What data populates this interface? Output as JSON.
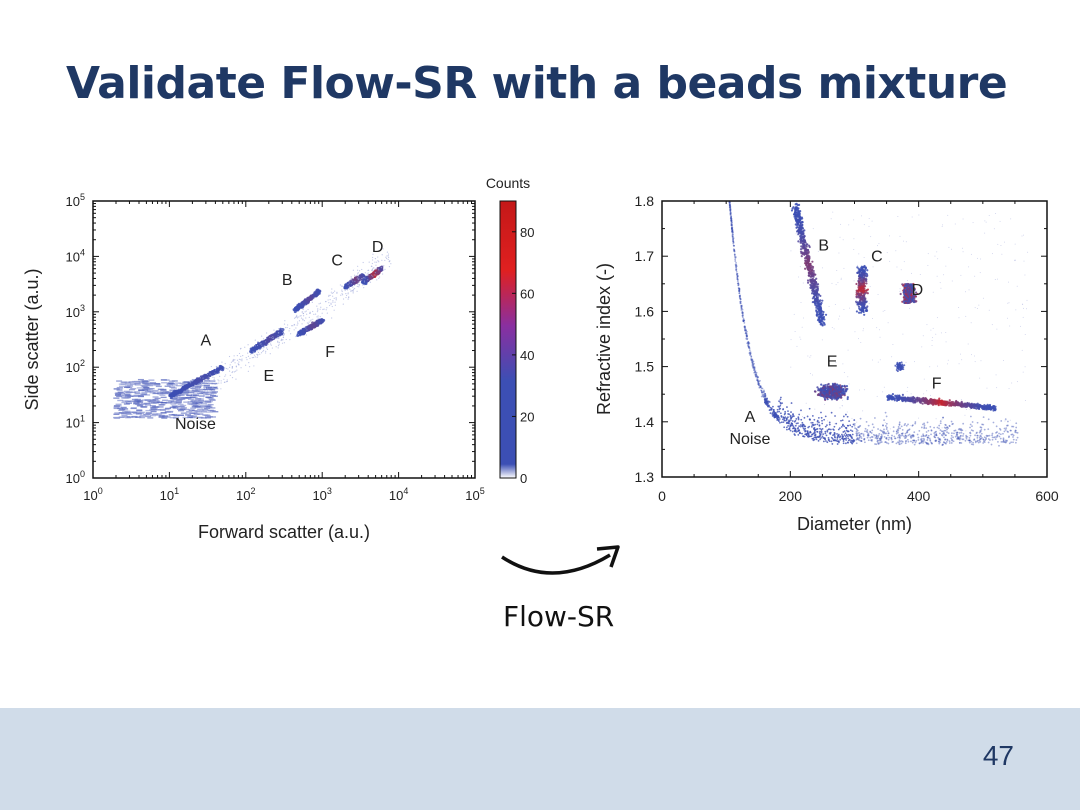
{
  "slide": {
    "title": "Validate Flow-SR with a beads mixture",
    "page_number": "47",
    "transform_label": "Flow-SR"
  },
  "colors": {
    "title": "#1f3864",
    "footer": "#d0dce9",
    "points_low": "#3c4fb4",
    "points_high": "#d62020"
  },
  "chart_data": [
    {
      "type": "heatmap",
      "xlabel": "Forward scatter (a.u.)",
      "ylabel": "Side scatter (a.u.)",
      "x_scale": "log",
      "y_scale": "log",
      "xlim": [
        1,
        100000
      ],
      "ylim": [
        1,
        100000
      ],
      "x_ticks": [
        {
          "base": "10",
          "exp": "0"
        },
        {
          "base": "10",
          "exp": "1"
        },
        {
          "base": "10",
          "exp": "2"
        },
        {
          "base": "10",
          "exp": "3"
        },
        {
          "base": "10",
          "exp": "4"
        },
        {
          "base": "10",
          "exp": "5"
        }
      ],
      "y_ticks": [
        {
          "base": "10",
          "exp": "0"
        },
        {
          "base": "10",
          "exp": "1"
        },
        {
          "base": "10",
          "exp": "2"
        },
        {
          "base": "10",
          "exp": "3"
        },
        {
          "base": "10",
          "exp": "4"
        },
        {
          "base": "10",
          "exp": "5"
        }
      ],
      "colorbar": {
        "label": "Counts",
        "range": [
          0,
          90
        ],
        "ticks": [
          "0",
          "20",
          "40",
          "60",
          "80"
        ]
      },
      "annotations": [
        {
          "text": "A",
          "x": 30,
          "y": 150
        },
        {
          "text": "B",
          "x": 500,
          "y": 2200
        },
        {
          "text": "C",
          "x": 2000,
          "y": 4500
        },
        {
          "text": "D",
          "x": 5000,
          "y": 8000
        },
        {
          "text": "E",
          "x": 200,
          "y": 100
        },
        {
          "text": "F",
          "x": 1000,
          "y": 250
        },
        {
          "text": "Noise",
          "x": 12,
          "y": 9
        }
      ],
      "clusters": [
        {
          "name": "Noise",
          "x_range": [
            2,
            40
          ],
          "y_range": [
            12,
            60
          ],
          "peak_counts": 20
        },
        {
          "name": "A",
          "x_range": [
            10,
            50
          ],
          "y_range": [
            30,
            100
          ],
          "peak_counts": 25
        },
        {
          "name": "E",
          "x_range": [
            120,
            300
          ],
          "y_range": [
            200,
            450
          ],
          "peak_counts": 35
        },
        {
          "name": "F",
          "x_range": [
            500,
            1000
          ],
          "y_range": [
            400,
            700
          ],
          "peak_counts": 45
        },
        {
          "name": "B",
          "x_range": [
            450,
            900
          ],
          "y_range": [
            1100,
            2300
          ],
          "peak_counts": 40
        },
        {
          "name": "C",
          "x_range": [
            2000,
            3500
          ],
          "y_range": [
            2800,
            4500
          ],
          "peak_counts": 55
        },
        {
          "name": "D",
          "x_range": [
            3500,
            6000
          ],
          "y_range": [
            3500,
            6000
          ],
          "peak_counts": 85
        }
      ]
    },
    {
      "type": "scatter",
      "xlabel": "Diameter (nm)",
      "ylabel": "Refractive index (-)",
      "xlim": [
        0,
        600
      ],
      "ylim": [
        1.3,
        1.8
      ],
      "x_ticks": [
        "0",
        "200",
        "400",
        "600"
      ],
      "y_ticks": [
        "1.3",
        "1.4",
        "1.5",
        "1.6",
        "1.7",
        "1.8"
      ],
      "annotations": [
        {
          "text": "B",
          "x": 252,
          "y": 1.71
        },
        {
          "text": "C",
          "x": 335,
          "y": 1.69
        },
        {
          "text": "D",
          "x": 398,
          "y": 1.63
        },
        {
          "text": "E",
          "x": 265,
          "y": 1.5
        },
        {
          "text": "F",
          "x": 428,
          "y": 1.46
        },
        {
          "text": "A",
          "x": 137,
          "y": 1.4
        },
        {
          "text": "Noise",
          "x": 137,
          "y": 1.36
        }
      ],
      "clusters": [
        {
          "name": "B",
          "diameter_range": [
            210,
            255
          ],
          "ri_range": [
            1.58,
            1.79
          ]
        },
        {
          "name": "C",
          "diameter_range": [
            300,
            340
          ],
          "ri_range": [
            1.59,
            1.68
          ]
        },
        {
          "name": "D",
          "diameter_range": [
            365,
            410
          ],
          "ri_range": [
            1.59,
            1.65
          ]
        },
        {
          "name": "E",
          "diameter_range": [
            230,
            300
          ],
          "ri_range": [
            1.42,
            1.48
          ]
        },
        {
          "name": "F",
          "diameter_range": [
            350,
            520
          ],
          "ri_range": [
            1.42,
            1.45
          ]
        },
        {
          "name": "A / Noise",
          "diameter_range": [
            100,
            550
          ],
          "ri_range": [
            1.36,
            1.8
          ]
        }
      ]
    }
  ]
}
